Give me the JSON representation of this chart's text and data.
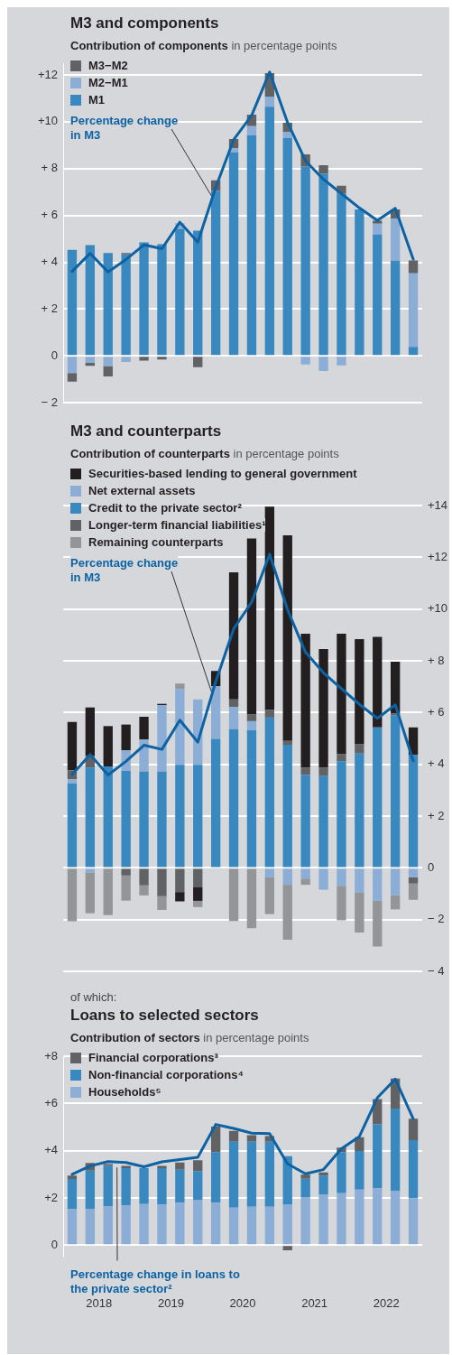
{
  "chart_data": [
    {
      "type": "bar",
      "title": "M3 and components",
      "subtitle": "Contribution of components",
      "ylabel": "in percentage points",
      "x": [
        2018.125,
        2018.375,
        2018.625,
        2018.875,
        2019.125,
        2019.375,
        2019.625,
        2019.875,
        2020.125,
        2020.375,
        2020.625,
        2020.875,
        2021.125,
        2021.375,
        2021.625,
        2021.875,
        2022.125,
        2022.375,
        2022.625,
        2022.875
      ],
      "xlim": [
        2018,
        2023
      ],
      "stacked": true,
      "series": [
        {
          "name": "M1",
          "color": "#3a88c0",
          "values": [
            4.53,
            4.73,
            4.4,
            4.34,
            4.85,
            4.77,
            5.43,
            5.35,
            7.05,
            8.69,
            9.42,
            10.64,
            9.3,
            8.09,
            7.78,
            6.93,
            6.26,
            5.19,
            4.07,
            0.39
          ]
        },
        {
          "name": "M2−M1",
          "color": "#8badd6",
          "values": [
            -0.73,
            -0.3,
            -0.43,
            -0.26,
            0,
            0,
            0.24,
            0,
            0,
            0.18,
            0.39,
            0.43,
            0.27,
            -0.36,
            -0.64,
            -0.4,
            0,
            0.46,
            1.8,
            3.14
          ]
        },
        {
          "name": "M3−M2",
          "color": "#616264",
          "values": [
            -0.37,
            -0.12,
            -0.44,
            0.06,
            -0.2,
            -0.15,
            0,
            -0.48,
            0.45,
            0.39,
            0.49,
            1.01,
            0.39,
            0.52,
            0.36,
            0.34,
            null,
            0.12,
            0.39,
            0.55
          ]
        },
        {
          "name": "Percentage change in M3",
          "type": "line",
          "color": "#0d62a3",
          "values": [
            3.61,
            4.38,
            3.59,
            4.12,
            4.74,
            4.58,
            5.71,
            4.86,
            7.2,
            9.24,
            10.27,
            12.12,
            9.97,
            8.33,
            7.54,
            6.93,
            6.32,
            5.78,
            6.3,
            4.13
          ]
        }
      ],
      "ylim": [
        -2,
        12.5
      ],
      "yticks": [
        {
          "value": 12,
          "label": "+12"
        },
        {
          "value": 10,
          "label": "+10"
        },
        {
          "value": 8,
          "label": "+ 8"
        },
        {
          "value": 6,
          "label": "+ 6"
        },
        {
          "value": 4,
          "label": "+ 4"
        },
        {
          "value": 2,
          "label": "+ 2"
        },
        {
          "value": 0,
          "label": "0"
        },
        {
          "value": -2,
          "label": "− 2"
        }
      ],
      "grid": "y",
      "legend": "top left",
      "tick_labels": "y",
      "marker": "none"
    },
    {
      "type": "bar",
      "title": "M3 and counterparts",
      "subtitle": "Contribution of counterparts",
      "ylabel": "in percentage points",
      "x": [
        2018.125,
        2018.375,
        2018.625,
        2018.875,
        2019.125,
        2019.375,
        2019.625,
        2019.875,
        2020.125,
        2020.375,
        2020.625,
        2020.875,
        2021.125,
        2021.375,
        2021.625,
        2021.875,
        2022.125,
        2022.375,
        2022.625,
        2022.875
      ],
      "xlim": [
        2018,
        2023
      ],
      "stacked": true,
      "series": [
        {
          "name": "Credit to the private sector²",
          "color": "#3a88c0",
          "values": [
            3.27,
            3.88,
            3.92,
            3.76,
            3.72,
            3.72,
            3.98,
            3.98,
            4.99,
            5.36,
            5.32,
            5.81,
            4.76,
            3.6,
            3.55,
            4.12,
            4.42,
            5.43,
            5.9,
            4.36
          ]
        },
        {
          "name": "Net external assets",
          "color": "#8badd6",
          "values": [
            0.16,
            -0.17,
            0,
            0.79,
            1.24,
            2.57,
            2.93,
            2.53,
            2.04,
            0.86,
            0.35,
            -0.36,
            -0.65,
            -0.41,
            -0.84,
            -0.69,
            -0.96,
            -1.27,
            -1.05,
            -0.36
          ]
        },
        {
          "name": "Longer-term financial liabilities¹",
          "color": "#616264",
          "values": [
            0.34,
            0.45,
            0,
            -0.29,
            -0.67,
            -1.09,
            -0.93,
            -0.75,
            0,
            0.29,
            0.27,
            0.29,
            0.15,
            0.28,
            0.33,
            0.27,
            0.36,
            0,
            0.07,
            -0.24
          ]
        },
        {
          "name": "Securities-based lending to general government",
          "color": "#231f20",
          "values": [
            1.87,
            1.87,
            1.56,
            0.99,
            0.88,
            0.05,
            -0.36,
            -0.52,
            0.58,
            4.91,
            6.79,
            7.86,
            7.94,
            5.17,
            4.58,
            4.66,
            4.06,
            3.5,
            2.0,
            1.07
          ]
        },
        {
          "name": "Remaining counterparts",
          "color": "#949599",
          "values": [
            -2.06,
            -1.58,
            -1.82,
            -0.97,
            -0.39,
            -0.53,
            0.21,
            -0.24,
            0,
            -2.05,
            -2.33,
            -1.42,
            -2.12,
            -0.24,
            0,
            -1.33,
            -1.53,
            -1.76,
            -0.55,
            -0.63
          ]
        },
        {
          "name": "Percentage change in M3",
          "type": "line",
          "color": "#0d62a3",
          "values": [
            3.61,
            4.38,
            3.59,
            4.12,
            4.74,
            4.58,
            5.71,
            4.86,
            7.2,
            9.24,
            10.27,
            12.12,
            9.97,
            8.33,
            7.54,
            6.93,
            6.32,
            5.78,
            6.3,
            4.13
          ]
        }
      ],
      "ylim": [
        -4,
        14
      ],
      "yticks": [
        {
          "value": 14,
          "label": "+14"
        },
        {
          "value": 12,
          "label": "+12"
        },
        {
          "value": 10,
          "label": "+10"
        },
        {
          "value": 8,
          "label": "+ 8"
        },
        {
          "value": 6,
          "label": "+ 6"
        },
        {
          "value": 4,
          "label": "+ 4"
        },
        {
          "value": 2,
          "label": "+ 2"
        },
        {
          "value": 0,
          "label": "0"
        },
        {
          "value": -2,
          "label": "− 2"
        },
        {
          "value": -4,
          "label": "− 4"
        }
      ],
      "grid": "y",
      "legend": "top left",
      "tick_labels": "y",
      "marker": "none"
    },
    {
      "type": "bar",
      "title": "Loans to selected sectors",
      "subtitle": "Contribution of sectors",
      "ylabel": "in percentage points",
      "annotations": [
        "of which:"
      ],
      "x": [
        2018.125,
        2018.375,
        2018.625,
        2018.875,
        2019.125,
        2019.375,
        2019.625,
        2019.875,
        2020.125,
        2020.375,
        2020.625,
        2020.875,
        2021.125,
        2021.375,
        2021.625,
        2021.875,
        2022.125,
        2022.375,
        2022.625,
        2022.875
      ],
      "xlim": [
        2018,
        2023
      ],
      "xticks": [
        {
          "value": 2018.5,
          "label": "2018"
        },
        {
          "value": 2019.5,
          "label": "2019"
        },
        {
          "value": 2020.5,
          "label": "2020"
        },
        {
          "value": 2021.5,
          "label": "2021"
        },
        {
          "value": 2022.5,
          "label": "2022"
        }
      ],
      "stacked": true,
      "series": [
        {
          "name": "Households⁵",
          "color": "#8badd6",
          "values": [
            1.52,
            1.52,
            1.64,
            1.69,
            1.74,
            1.73,
            1.8,
            1.9,
            1.8,
            1.59,
            1.63,
            1.63,
            1.71,
            2.04,
            2.13,
            2.2,
            2.35,
            2.41,
            2.31,
            1.98
          ]
        },
        {
          "name": "Non-financial corporations⁴",
          "color": "#3a88c0",
          "values": [
            1.28,
            1.64,
            1.72,
            1.57,
            1.52,
            1.53,
            1.39,
            1.24,
            2.14,
            2.79,
            2.75,
            2.75,
            2.06,
            0.77,
            0.82,
            1.73,
            1.64,
            2.7,
            3.47,
            2.47
          ]
        },
        {
          "name": "Financial corporations³",
          "color": "#616264",
          "values": [
            0.15,
            0.32,
            0.07,
            0.1,
            0,
            0.1,
            0.31,
            0.46,
            1.08,
            0.46,
            0.28,
            0.24,
            -0.22,
            0.17,
            0.13,
            0.2,
            0.58,
            1.07,
            1.27,
            0.9
          ]
        },
        {
          "name": "Percentage change in loans to the private sector²",
          "type": "line",
          "color": "#0d62a3",
          "values": [
            3.0,
            3.35,
            3.54,
            3.5,
            3.32,
            3.53,
            3.62,
            3.72,
            5.11,
            4.94,
            4.74,
            4.72,
            3.44,
            3.02,
            3.2,
            4.08,
            4.6,
            6.24,
            7.03,
            5.35
          ]
        }
      ],
      "ylim": [
        -0.5,
        8
      ],
      "yticks": [
        {
          "value": 8,
          "label": "+8"
        },
        {
          "value": 6,
          "label": "+6"
        },
        {
          "value": 4,
          "label": "+4"
        },
        {
          "value": 2,
          "label": "+2"
        },
        {
          "value": 0,
          "label": "0"
        }
      ],
      "grid": "y",
      "legend": "top left",
      "marker": "none"
    }
  ]
}
